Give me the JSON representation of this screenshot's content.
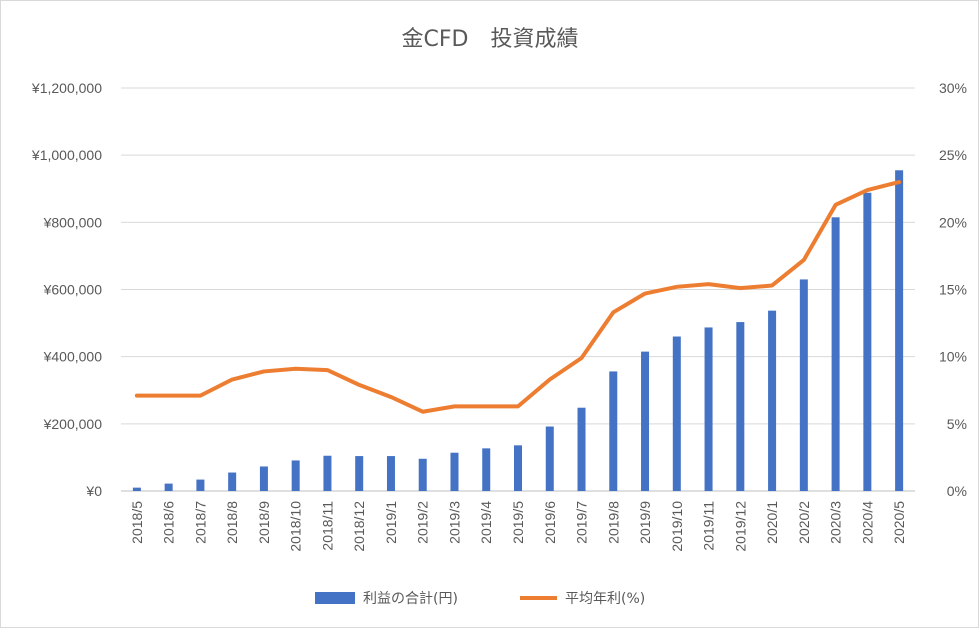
{
  "chart_data": {
    "type": "bar+line",
    "title": "金CFD　投資成績",
    "categories": [
      "2018/5",
      "2018/6",
      "2018/7",
      "2018/8",
      "2018/9",
      "2018/10",
      "2018/11",
      "2018/12",
      "2019/1",
      "2019/2",
      "2019/3",
      "2019/4",
      "2019/5",
      "2019/6",
      "2019/7",
      "2019/8",
      "2019/9",
      "2019/10",
      "2019/11",
      "2019/12",
      "2020/1",
      "2020/2",
      "2020/3",
      "2020/4",
      "2020/5"
    ],
    "series": [
      {
        "name": "利益の合計(円)",
        "type": "bar",
        "axis": "left",
        "color": "#4472c4",
        "values": [
          10000,
          22000,
          34000,
          55000,
          73000,
          91000,
          105000,
          104000,
          104000,
          96000,
          114000,
          127000,
          136000,
          192000,
          248000,
          356000,
          415000,
          460000,
          487000,
          503000,
          537000,
          630000,
          815000,
          888000,
          955000
        ]
      },
      {
        "name": "平均年利(%)",
        "type": "line",
        "axis": "right",
        "color": "#ed7d31",
        "values": [
          7.1,
          7.1,
          7.1,
          8.3,
          8.9,
          9.1,
          9.0,
          7.9,
          7.0,
          5.9,
          6.3,
          6.3,
          6.3,
          8.3,
          9.9,
          13.3,
          14.7,
          15.2,
          15.4,
          15.1,
          15.3,
          17.2,
          21.3,
          22.4,
          23.0
        ]
      }
    ],
    "y_left": {
      "ylim": [
        0,
        1200000
      ],
      "ticks": [
        0,
        200000,
        400000,
        600000,
        800000,
        1000000,
        1200000
      ],
      "tick_labels": [
        "¥0",
        "¥200,000",
        "¥400,000",
        "¥600,000",
        "¥800,000",
        "¥1,000,000",
        "¥1,200,000"
      ]
    },
    "y_right": {
      "ylim": [
        0,
        30
      ],
      "ticks": [
        0,
        5,
        10,
        15,
        20,
        25,
        30
      ],
      "tick_labels": [
        "0%",
        "5%",
        "10%",
        "15%",
        "20%",
        "25%",
        "30%"
      ]
    },
    "grid": true,
    "legend_position": "bottom"
  }
}
